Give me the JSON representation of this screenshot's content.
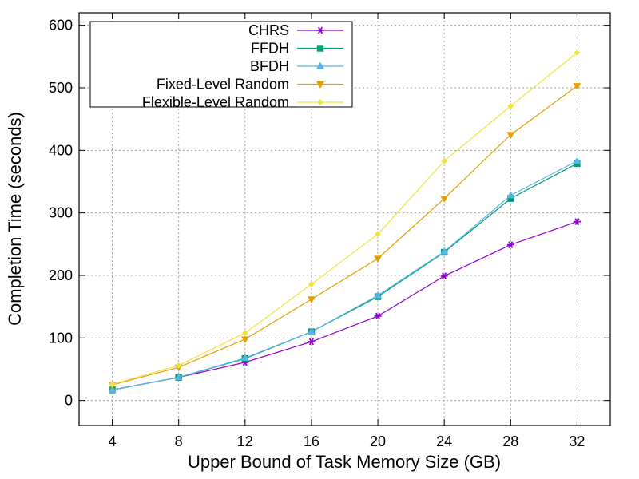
{
  "chart_data": {
    "type": "line",
    "title": "",
    "xlabel": "Upper Bound of Task Memory Size (GB)",
    "ylabel": "Completion Time (seconds)",
    "x": [
      4,
      8,
      12,
      16,
      20,
      24,
      28,
      32
    ],
    "xlim": [
      2,
      34
    ],
    "ylim": [
      -40,
      620
    ],
    "yticks": [
      0,
      100,
      200,
      300,
      400,
      500,
      600
    ],
    "grid": true,
    "legend": "top-left",
    "series": [
      {
        "name": "CHRS",
        "color": "#9400d3",
        "marker": "star",
        "values": [
          17,
          37,
          61,
          94,
          135,
          199,
          249,
          286
        ]
      },
      {
        "name": "FFDH",
        "color": "#009e73",
        "marker": "square",
        "values": [
          17,
          37,
          67,
          110,
          166,
          237,
          323,
          379
        ]
      },
      {
        "name": "BFDH",
        "color": "#56b4e9",
        "marker": "triangle-up",
        "values": [
          17,
          37,
          68,
          110,
          168,
          238,
          328,
          383
        ]
      },
      {
        "name": "Fixed-Level Random",
        "color": "#e69f00",
        "marker": "triangle-down",
        "values": [
          25,
          53,
          98,
          162,
          227,
          323,
          425,
          503
        ]
      },
      {
        "name": "Flexible-Level Random",
        "color": "#f0e442",
        "marker": "diamond",
        "values": [
          26,
          56,
          108,
          186,
          266,
          383,
          471,
          556
        ]
      }
    ]
  }
}
